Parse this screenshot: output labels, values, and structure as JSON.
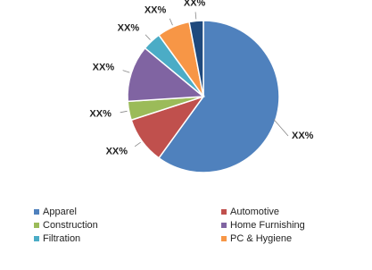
{
  "chart_data": {
    "type": "pie",
    "categories": [
      "Apparel",
      "Automotive",
      "Construction",
      "Home Furnishing",
      "Filtration",
      "PC & Hygiene",
      null
    ],
    "values": [
      60,
      10,
      4,
      12,
      4,
      7,
      3
    ],
    "value_labels": [
      "XX%",
      "XX%",
      "XX%",
      "XX%",
      "XX%",
      "XX%",
      "XX%"
    ],
    "colors": [
      "#4f81bd",
      "#c0504d",
      "#9bbb59",
      "#8064a2",
      "#4bacc6",
      "#f79646",
      "#1f497d"
    ]
  }
}
